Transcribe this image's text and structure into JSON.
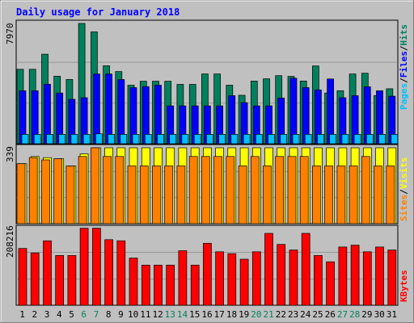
{
  "chart_data": [
    {
      "type": "bar",
      "panel": "hits-files-pages",
      "title": "Daily usage for January 2018",
      "ylabel_max": "7970",
      "legend_parts": [
        "Pages",
        "/",
        "Files",
        "/",
        "Hits"
      ],
      "categories": [
        "1",
        "2",
        "3",
        "4",
        "5",
        "6",
        "7",
        "8",
        "9",
        "10",
        "11",
        "12",
        "13",
        "14",
        "15",
        "16",
        "17",
        "18",
        "19",
        "20",
        "21",
        "22",
        "23",
        "24",
        "25",
        "26",
        "27",
        "28",
        "29",
        "30",
        "31"
      ],
      "weekend_days": [
        "6",
        "7",
        "13",
        "14",
        "20",
        "21",
        "27",
        "28"
      ],
      "ylim": [
        0,
        7970
      ],
      "series": [
        {
          "name": "Hits",
          "color": "#00805c",
          "values": [
            4930,
            4930,
            5930,
            4470,
            4260,
            7970,
            7410,
            5160,
            4780,
            3880,
            4140,
            4140,
            4140,
            3930,
            3930,
            4620,
            4620,
            3880,
            3210,
            4150,
            4300,
            4510,
            4460,
            4150,
            5150,
            3360,
            3510,
            4620,
            4670,
            3190,
            3640
          ]
        },
        {
          "name": "Files",
          "color": "#0000ff",
          "values": [
            3510,
            3510,
            3940,
            3360,
            2940,
            3050,
            4620,
            4620,
            4250,
            3720,
            3780,
            3880,
            2510,
            2510,
            2510,
            2510,
            2510,
            3180,
            2720,
            2510,
            2510,
            3030,
            4340,
            3720,
            3570,
            4290,
            3050,
            3180,
            3770,
            3510,
            3150
          ]
        },
        {
          "name": "Pages",
          "color": "#00c0ff",
          "values": [
            620,
            620,
            620,
            620,
            620,
            620,
            660,
            620,
            620,
            620,
            620,
            620,
            620,
            620,
            620,
            620,
            620,
            620,
            620,
            620,
            620,
            620,
            620,
            620,
            620,
            620,
            620,
            620,
            620,
            620,
            620
          ]
        }
      ]
    },
    {
      "type": "bar",
      "panel": "visits-sites",
      "ylabel_max": "339",
      "legend_parts": [
        "Sites",
        "/",
        "Visits"
      ],
      "categories": [
        "1",
        "2",
        "3",
        "4",
        "5",
        "6",
        "7",
        "8",
        "9",
        "10",
        "11",
        "12",
        "13",
        "14",
        "15",
        "16",
        "17",
        "18",
        "19",
        "20",
        "21",
        "22",
        "23",
        "24",
        "25",
        "26",
        "27",
        "28",
        "29",
        "30",
        "31"
      ],
      "ylim": [
        0,
        339
      ],
      "series": [
        {
          "name": "Visits",
          "color": "#ffff00",
          "values": [
            268,
            300,
            295,
            290,
            258,
            312,
            339,
            339,
            339,
            339,
            339,
            339,
            339,
            339,
            339,
            339,
            339,
            339,
            339,
            339,
            339,
            339,
            339,
            339,
            339,
            339,
            339,
            339,
            339,
            339,
            339
          ]
        },
        {
          "name": "Sites",
          "color": "#ff8000",
          "values": [
            268,
            295,
            285,
            290,
            258,
            300,
            339,
            300,
            300,
            258,
            258,
            258,
            258,
            258,
            300,
            300,
            300,
            300,
            258,
            300,
            258,
            300,
            300,
            300,
            258,
            258,
            258,
            258,
            300,
            258,
            258
          ]
        }
      ]
    },
    {
      "type": "bar",
      "panel": "kbytes",
      "ylabel_max": "208216",
      "legend_parts": [
        "KBytes"
      ],
      "categories": [
        "1",
        "2",
        "3",
        "4",
        "5",
        "6",
        "7",
        "8",
        "9",
        "10",
        "11",
        "12",
        "13",
        "14",
        "15",
        "16",
        "17",
        "18",
        "19",
        "20",
        "21",
        "22",
        "23",
        "24",
        "25",
        "26",
        "27",
        "28",
        "29",
        "30",
        "31"
      ],
      "ylim": [
        0,
        208216
      ],
      "series": [
        {
          "name": "KBytes",
          "color": "#ff0000",
          "values": [
            154000,
            142000,
            175000,
            135000,
            135000,
            209000,
            209000,
            178000,
            175000,
            128000,
            109000,
            109000,
            109000,
            148000,
            109000,
            168000,
            145000,
            140000,
            125000,
            145000,
            195000,
            165000,
            150000,
            195000,
            135000,
            118000,
            158000,
            163000,
            145000,
            158000,
            150000
          ]
        }
      ]
    }
  ]
}
